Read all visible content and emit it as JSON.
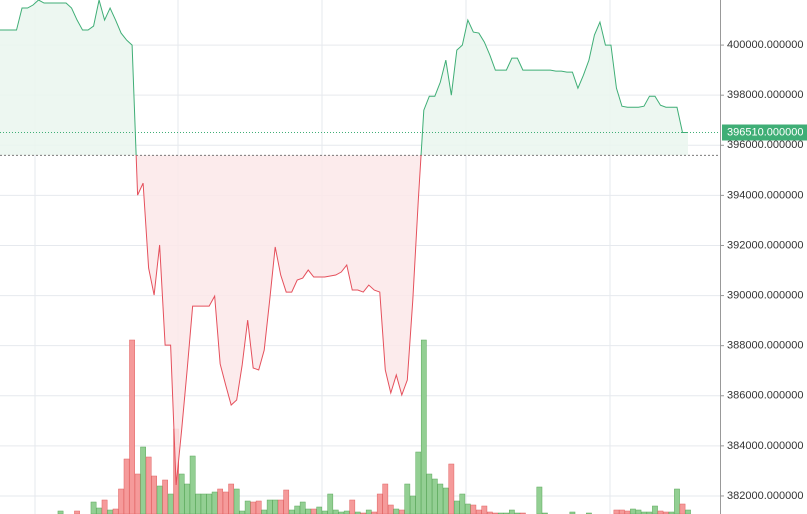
{
  "chart_data": {
    "type": "baseline",
    "ylim": [
      381280,
      401800
    ],
    "yticks": [
      {
        "value": 382000,
        "label": "382000.000000"
      },
      {
        "value": 384000,
        "label": "384000.000000"
      },
      {
        "value": 386000,
        "label": "386000.000000"
      },
      {
        "value": 388000,
        "label": "388000.000000"
      },
      {
        "value": 390000,
        "label": "390000.000000"
      },
      {
        "value": 392000,
        "label": "392000.000000"
      },
      {
        "value": 394000,
        "label": "394000.000000"
      },
      {
        "value": 396000,
        "label": "396000.000000"
      },
      {
        "value": 398000,
        "label": "398000.000000"
      },
      {
        "value": 400000,
        "label": "400000.000000"
      }
    ],
    "grid": true,
    "baseline": 395600,
    "last_value_label": "396510.000000",
    "price": {
      "color_up": "#3fae76",
      "color_down": "#e5505c",
      "fill_up": "#eaf6ee",
      "fill_down": "#fce8e9",
      "values": [
        400600,
        400600,
        400600,
        400600,
        401480,
        401480,
        401600,
        401800,
        401680,
        401680,
        401680,
        401680,
        401680,
        401480,
        401000,
        400600,
        400600,
        400760,
        401800,
        401000,
        401480,
        401000,
        400480,
        400200,
        400000,
        394010,
        394490,
        391100,
        390020,
        392020,
        388020,
        388020,
        382440,
        384630,
        387030,
        389580,
        389580,
        389580,
        389580,
        389980,
        387270,
        386430,
        385630,
        385830,
        387230,
        389020,
        387110,
        387030,
        387820,
        389820,
        391940,
        390820,
        390140,
        390140,
        390620,
        390700,
        391020,
        390740,
        390740,
        390740,
        390780,
        390820,
        390940,
        391220,
        390220,
        390220,
        390140,
        390420,
        390220,
        390140,
        387030,
        386110,
        386830,
        386030,
        386630,
        389820,
        393810,
        397400,
        397960,
        397960,
        398520,
        399400,
        398000,
        399800,
        400000,
        401000,
        400520,
        400480,
        400120,
        399600,
        399000,
        399000,
        399000,
        399480,
        399480,
        399000,
        399000,
        399000,
        399000,
        399000,
        399000,
        398960,
        398960,
        398920,
        398920,
        398280,
        398800,
        399400,
        400400,
        400920,
        400000,
        400000,
        398280,
        397560,
        397520,
        397520,
        397520,
        397560,
        397960,
        397960,
        397600,
        397520,
        397520,
        397520,
        396510,
        396510
      ]
    },
    "volume": {
      "color_up": "#93cf93",
      "color_down": "#f59a9a",
      "values": [
        0,
        0,
        0,
        0,
        0,
        0,
        0,
        0,
        0,
        0,
        0,
        3,
        0,
        0,
        3,
        0,
        0,
        12,
        6,
        14,
        4,
        5,
        25,
        55,
        174,
        40,
        67,
        57,
        38,
        28,
        34,
        20,
        85,
        40,
        30,
        58,
        20,
        20,
        20,
        22,
        25,
        22,
        30,
        25,
        3,
        13,
        12,
        13,
        4,
        14,
        14,
        14,
        24,
        4,
        8,
        12,
        5,
        5,
        7,
        3,
        20,
        4,
        2,
        3,
        14,
        2,
        1,
        4,
        2,
        20,
        30,
        9,
        5,
        4,
        30,
        18,
        62,
        174,
        40,
        35,
        30,
        26,
        50,
        13,
        20,
        10,
        9,
        4,
        8,
        2,
        1,
        1,
        1,
        4,
        1,
        1,
        0,
        0,
        27,
        1,
        0,
        0,
        0,
        0,
        2,
        0,
        0,
        1,
        0,
        0,
        0,
        0,
        4,
        4,
        3,
        5,
        4,
        2,
        2,
        8,
        3,
        2,
        2,
        25,
        10,
        4
      ]
    }
  }
}
